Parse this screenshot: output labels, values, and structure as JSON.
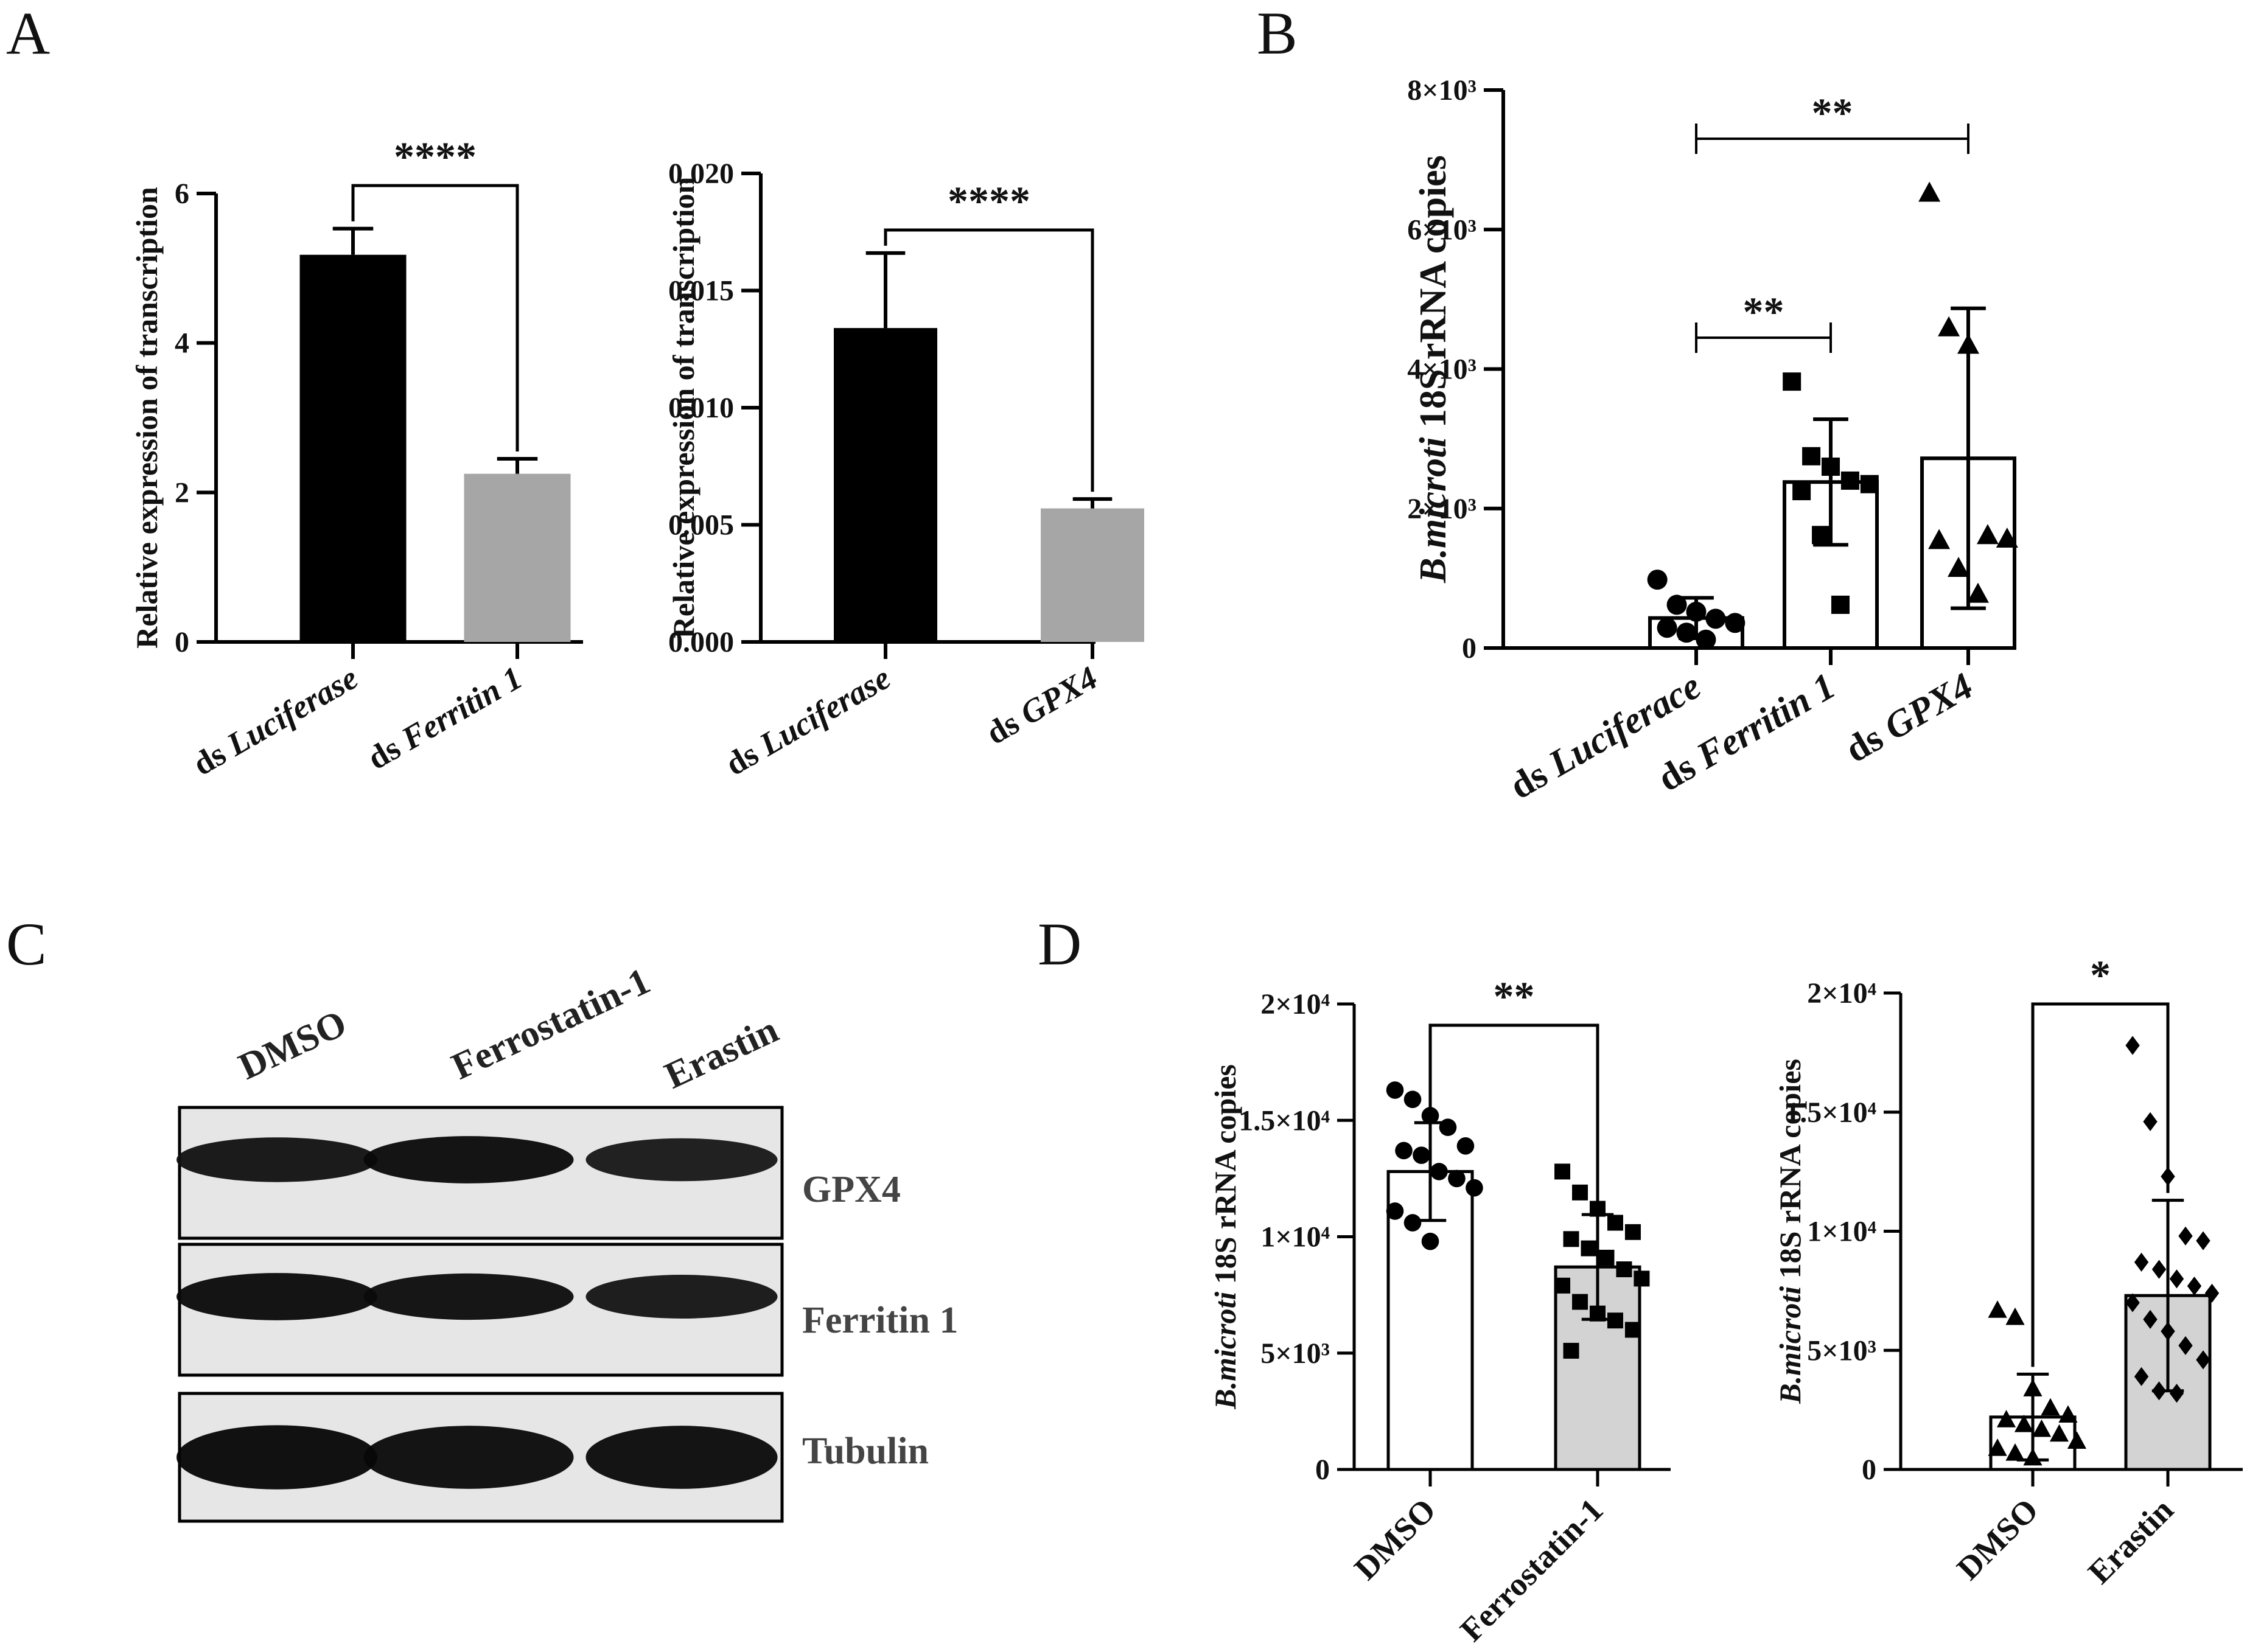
{
  "panels": {
    "A": "A",
    "B": "B",
    "C": "C",
    "D": "D"
  },
  "chart_data": [
    {
      "id": "A1",
      "type": "bar",
      "categories_prefix": [
        "ds",
        "ds"
      ],
      "categories": [
        "Luciferase",
        "Ferritin 1"
      ],
      "values": [
        5.18,
        2.25
      ],
      "errors": [
        0.35,
        0.2
      ],
      "colors": [
        "#000000",
        "#a6a6a6"
      ],
      "ylabel": "Relative expression of transcription",
      "ylim": [
        0,
        6
      ],
      "yticks": [
        0,
        2,
        4,
        6
      ],
      "yticklabels": [
        "0",
        "2",
        "4",
        "6"
      ],
      "significance": [
        {
          "pair": [
            0,
            1
          ],
          "label": "****"
        }
      ]
    },
    {
      "id": "A2",
      "type": "bar",
      "categories_prefix": [
        "ds",
        "ds"
      ],
      "categories": [
        "Luciferase",
        "GPX4"
      ],
      "values": [
        0.0134,
        0.0057
      ],
      "errors": [
        0.0032,
        0.0004
      ],
      "colors": [
        "#000000",
        "#a6a6a6"
      ],
      "ylabel": "Relative expression of transcription",
      "ylim": [
        0,
        0.02
      ],
      "yticks": [
        0,
        0.005,
        0.01,
        0.015,
        0.02
      ],
      "yticklabels": [
        "0.000",
        "0.005",
        "0.010",
        "0.015",
        "0.020"
      ],
      "significance": [
        {
          "pair": [
            0,
            1
          ],
          "label": "****"
        }
      ]
    },
    {
      "id": "B",
      "type": "bar",
      "categories_prefix": [
        "ds",
        "ds",
        "ds"
      ],
      "categories": [
        "Luciferace",
        "Ferritin 1",
        "GPX4"
      ],
      "values": [
        430,
        2380,
        2720
      ],
      "errors": [
        290,
        900,
        2150
      ],
      "colors": [
        "#ffffff",
        "#ffffff",
        "#ffffff"
      ],
      "points": [
        {
          "marker": "circle",
          "values": [
            980,
            620,
            520,
            420,
            360,
            290,
            220,
            120
          ]
        },
        {
          "marker": "square",
          "values": [
            3820,
            2750,
            2600,
            2400,
            2350,
            2250,
            1620,
            620
          ]
        },
        {
          "marker": "triangle",
          "values": [
            6530,
            4600,
            4350,
            1620,
            1570,
            1550,
            1150,
            780
          ]
        }
      ],
      "ylabel_italic": "B.microti",
      "ylabel": "18S rRNA copies",
      "ylim": [
        0,
        8000
      ],
      "yticks": [
        0,
        2000,
        4000,
        6000,
        8000
      ],
      "yticklabels": [
        "0",
        "2×10³",
        "4×10³",
        "6×10³",
        "8×10³"
      ],
      "significance": [
        {
          "pair": [
            0,
            1
          ],
          "label": "**"
        },
        {
          "pair": [
            0,
            2
          ],
          "label": "**"
        }
      ]
    },
    {
      "id": "D1",
      "type": "bar",
      "categories": [
        "DMSO",
        "Ferrostatin-1"
      ],
      "values": [
        12800,
        8700
      ],
      "errors": [
        2100,
        2250
      ],
      "colors": [
        "#ffffff",
        "#d3d3d3"
      ],
      "points": [
        {
          "marker": "circle",
          "values": [
            16300,
            15900,
            15200,
            14700,
            13900,
            13700,
            13500,
            12800,
            12500,
            12100,
            11100,
            10600,
            9800
          ]
        },
        {
          "marker": "square",
          "values": [
            12800,
            11900,
            11200,
            10600,
            10200,
            9900,
            9500,
            9100,
            8600,
            8200,
            7900,
            7200,
            6700,
            6400,
            6000,
            5100
          ]
        }
      ],
      "ylabel_italic": "B.microti",
      "ylabel": "18S rRNA copies",
      "ylim": [
        0,
        20000
      ],
      "yticks": [
        0,
        5000,
        10000,
        15000,
        20000
      ],
      "yticklabels": [
        "0",
        "5×10³",
        "1×10⁴",
        "1.5×10⁴",
        "2×10⁴"
      ],
      "significance": [
        {
          "pair": [
            0,
            1
          ],
          "label": "**"
        }
      ]
    },
    {
      "id": "D2",
      "type": "bar",
      "categories": [
        "DMSO",
        "Erastin"
      ],
      "values": [
        2200,
        7300
      ],
      "errors": [
        1800,
        4000
      ],
      "colors": [
        "#ffffff",
        "#d3d3d3"
      ],
      "points": [
        {
          "marker": "triangle",
          "values": [
            6700,
            6400,
            3400,
            2600,
            2300,
            2100,
            1900,
            1700,
            1500,
            1200,
            900,
            700,
            500
          ]
        },
        {
          "marker": "diamond",
          "values": [
            17800,
            14600,
            12300,
            9800,
            9600,
            8700,
            8400,
            8000,
            7700,
            7400,
            7000,
            6300,
            5800,
            5200,
            4600,
            3900,
            3300,
            3200
          ]
        }
      ],
      "ylabel_italic": "B.microti",
      "ylabel": "18S rRNA copies",
      "ylim": [
        0,
        20000
      ],
      "yticks": [
        0,
        5000,
        10000,
        15000,
        20000
      ],
      "yticklabels": [
        "0",
        "5×10³",
        "1×10⁴",
        "1.5×10⁴",
        "2×10⁴"
      ],
      "significance": [
        {
          "pair": [
            0,
            1
          ],
          "label": "*"
        }
      ]
    }
  ],
  "blot": {
    "columns": [
      "DMSO",
      "Ferrostatin-1",
      "Erastin"
    ],
    "rows": [
      "GPX4",
      "Ferritin 1",
      "Tubulin"
    ],
    "band_intensity": [
      [
        0.8,
        0.95,
        0.7
      ],
      [
        0.95,
        0.9,
        0.75
      ],
      [
        1.0,
        0.95,
        0.95
      ]
    ]
  }
}
